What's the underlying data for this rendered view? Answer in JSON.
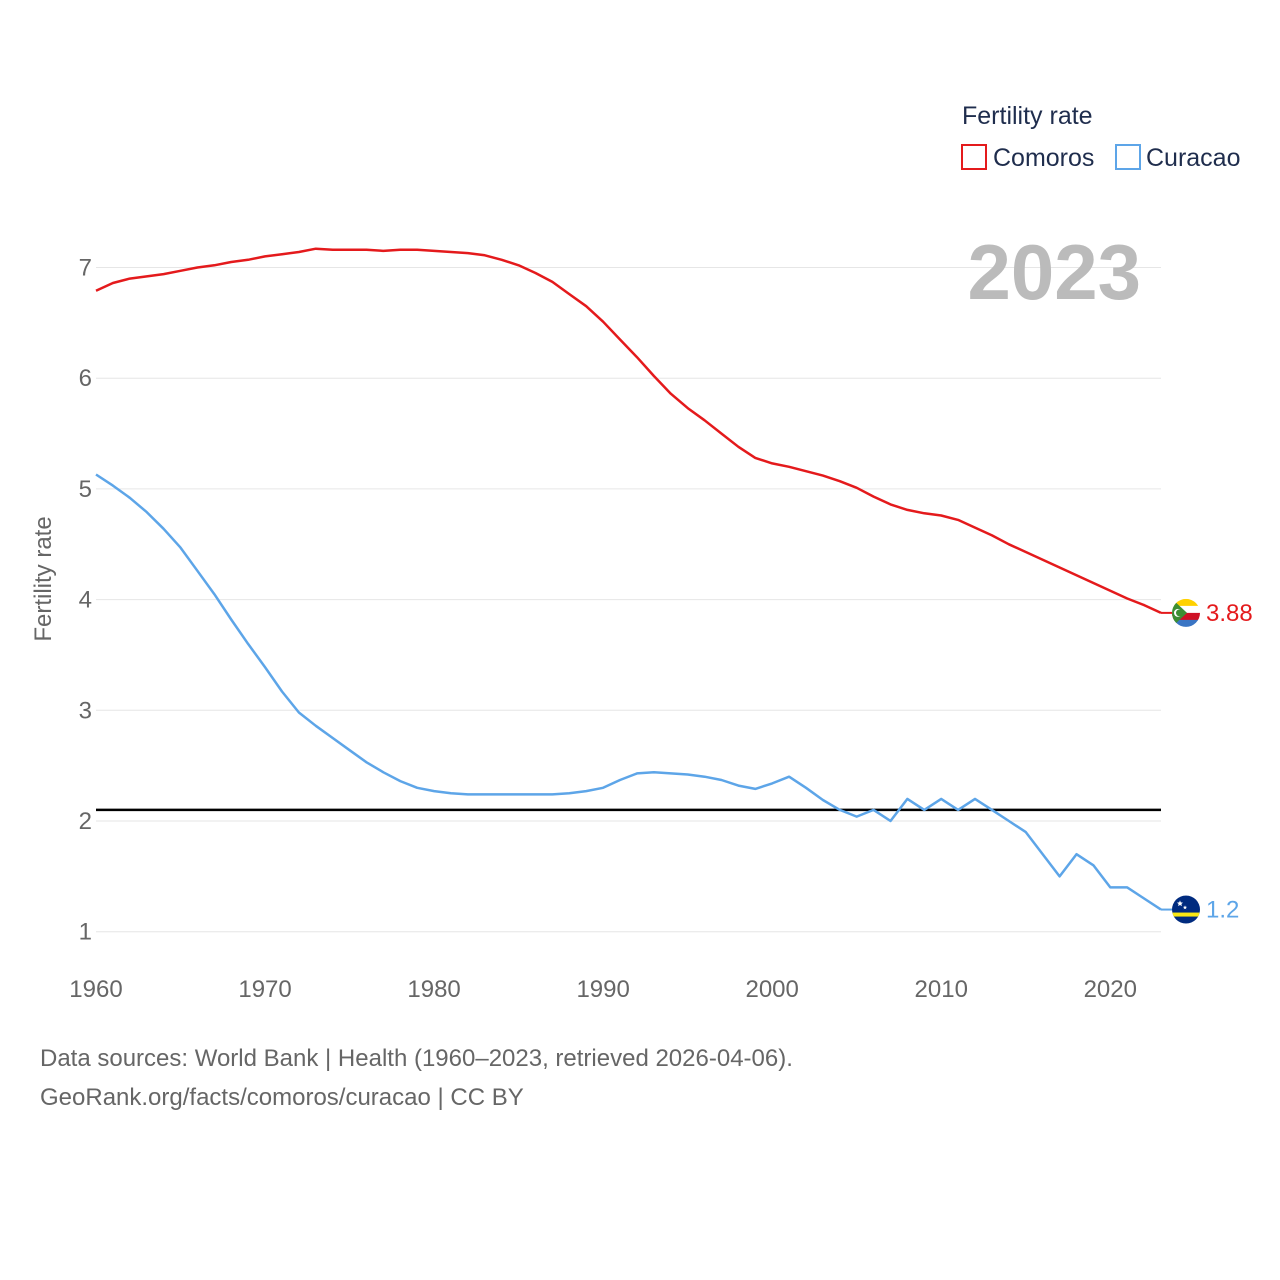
{
  "chart_data": {
    "type": "line",
    "title": "Fertility rate",
    "year_label": "2023",
    "ylabel": "Fertility rate",
    "xlabel": "",
    "xlim": [
      1960,
      2023
    ],
    "ylim": [
      0.7,
      7.3
    ],
    "x_ticks": [
      1960,
      1970,
      1980,
      1990,
      2000,
      2010,
      2020
    ],
    "y_ticks": [
      1,
      2,
      3,
      4,
      5,
      6,
      7
    ],
    "reference_line": 2.1,
    "x": [
      1960,
      1961,
      1962,
      1963,
      1964,
      1965,
      1966,
      1967,
      1968,
      1969,
      1970,
      1971,
      1972,
      1973,
      1974,
      1975,
      1976,
      1977,
      1978,
      1979,
      1980,
      1981,
      1982,
      1983,
      1984,
      1985,
      1986,
      1987,
      1988,
      1989,
      1990,
      1991,
      1992,
      1993,
      1994,
      1995,
      1996,
      1997,
      1998,
      1999,
      2000,
      2001,
      2002,
      2003,
      2004,
      2005,
      2006,
      2007,
      2008,
      2009,
      2010,
      2011,
      2012,
      2013,
      2014,
      2015,
      2016,
      2017,
      2018,
      2019,
      2020,
      2021,
      2022,
      2023
    ],
    "series": [
      {
        "name": "Comoros",
        "color": "#e41a1c",
        "end_label": "3.88",
        "flag": "comoros-flag",
        "values": [
          6.79,
          6.86,
          6.9,
          6.92,
          6.94,
          6.97,
          7.0,
          7.02,
          7.05,
          7.07,
          7.1,
          7.12,
          7.14,
          7.17,
          7.16,
          7.16,
          7.16,
          7.15,
          7.16,
          7.16,
          7.15,
          7.14,
          7.13,
          7.11,
          7.07,
          7.02,
          6.95,
          6.87,
          6.76,
          6.65,
          6.51,
          6.35,
          6.19,
          6.02,
          5.86,
          5.73,
          5.62,
          5.5,
          5.38,
          5.28,
          5.23,
          5.2,
          5.16,
          5.12,
          5.07,
          5.01,
          4.93,
          4.86,
          4.81,
          4.78,
          4.76,
          4.72,
          4.65,
          4.58,
          4.5,
          4.43,
          4.36,
          4.29,
          4.22,
          4.15,
          4.08,
          4.01,
          3.95,
          3.88
        ]
      },
      {
        "name": "Curacao",
        "color": "#5da5e8",
        "end_label": "1.2",
        "flag": "curacao-flag",
        "values": [
          5.13,
          5.03,
          4.92,
          4.79,
          4.64,
          4.47,
          4.26,
          4.05,
          3.82,
          3.6,
          3.39,
          3.17,
          2.98,
          2.86,
          2.75,
          2.64,
          2.53,
          2.44,
          2.36,
          2.3,
          2.27,
          2.25,
          2.24,
          2.24,
          2.24,
          2.24,
          2.24,
          2.24,
          2.25,
          2.27,
          2.3,
          2.37,
          2.43,
          2.44,
          2.43,
          2.42,
          2.4,
          2.37,
          2.32,
          2.29,
          2.34,
          2.4,
          2.3,
          2.19,
          2.1,
          2.04,
          2.1,
          2.0,
          2.2,
          2.1,
          2.2,
          2.1,
          2.2,
          2.1,
          2.0,
          1.9,
          1.7,
          1.5,
          1.7,
          1.6,
          1.4,
          1.4,
          1.3,
          1.2
        ]
      }
    ]
  },
  "footer": {
    "line1": "Data sources: World Bank | Health (1960–2023, retrieved 2026-04-06).",
    "line2": "GeoRank.org/facts/comoros/curacao | CC BY"
  }
}
